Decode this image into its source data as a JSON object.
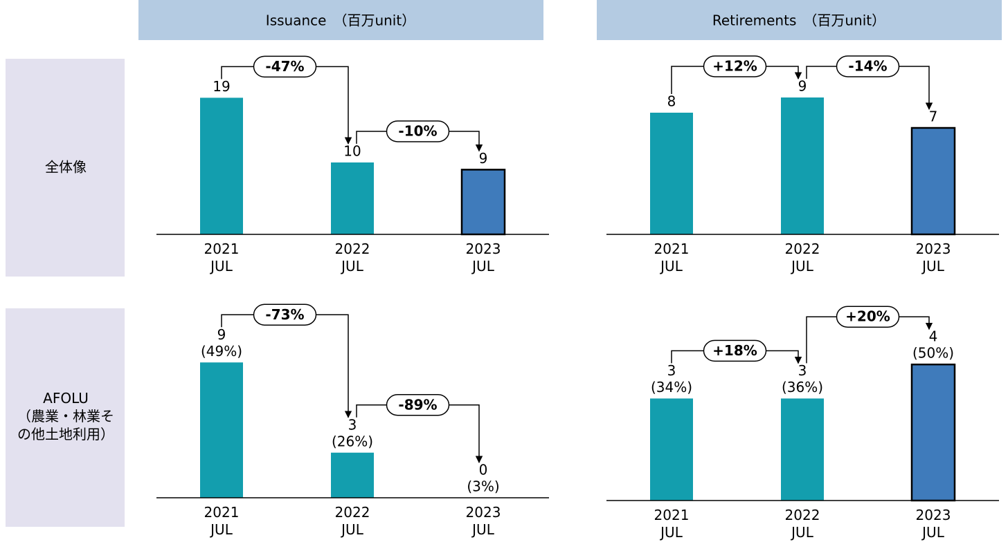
{
  "headers": {
    "issuance": "Issuance　（百万unit）",
    "retirements": "Retirements　（百万unit）"
  },
  "rows": [
    "全体像",
    "AFOLU\n（農業・林業そ\nの他土地利用）"
  ],
  "chart_data": [
    {
      "type": "bar",
      "categories": [
        "2021\nJUL",
        "2022\nJUL",
        "2023\nJUL"
      ],
      "values": [
        19,
        10,
        9
      ],
      "colors": [
        "#139eae",
        "#139eae",
        "#3f7bbb"
      ],
      "edgecolors": [
        "none",
        "none",
        "#000000"
      ],
      "changes": [
        "-47%",
        "-10%"
      ],
      "ylim": [
        0,
        25
      ]
    },
    {
      "type": "bar",
      "categories": [
        "2021\nJUL",
        "2022\nJUL",
        "2023\nJUL"
      ],
      "values": [
        8,
        9,
        7
      ],
      "colors": [
        "#139eae",
        "#139eae",
        "#3f7bbb"
      ],
      "edgecolors": [
        "none",
        "none",
        "#000000"
      ],
      "changes": [
        "+12%",
        "-14%"
      ],
      "ylim": [
        0,
        12
      ]
    },
    {
      "type": "bar",
      "categories": [
        "2021\nJUL",
        "2022\nJUL",
        "2023\nJUL"
      ],
      "values": [
        9,
        3,
        0
      ],
      "share_labels": [
        "(49%)",
        "(26%)",
        "(3%)"
      ],
      "colors": [
        "#139eae",
        "#139eae",
        "#3f7bbb"
      ],
      "edgecolors": [
        "none",
        "none",
        "#000000"
      ],
      "changes": [
        "-73%",
        "-89%"
      ],
      "ylim": [
        0,
        12
      ]
    },
    {
      "type": "bar",
      "categories": [
        "2021\nJUL",
        "2022\nJUL",
        "2023\nJUL"
      ],
      "values": [
        3,
        3,
        4
      ],
      "share_labels": [
        "(34%)",
        "(36%)",
        "(50%)"
      ],
      "colors": [
        "#139eae",
        "#139eae",
        "#3f7bbb"
      ],
      "edgecolors": [
        "none",
        "none",
        "#000000"
      ],
      "changes": [
        "+18%",
        "+20%"
      ],
      "ylim": [
        0,
        5
      ]
    }
  ]
}
